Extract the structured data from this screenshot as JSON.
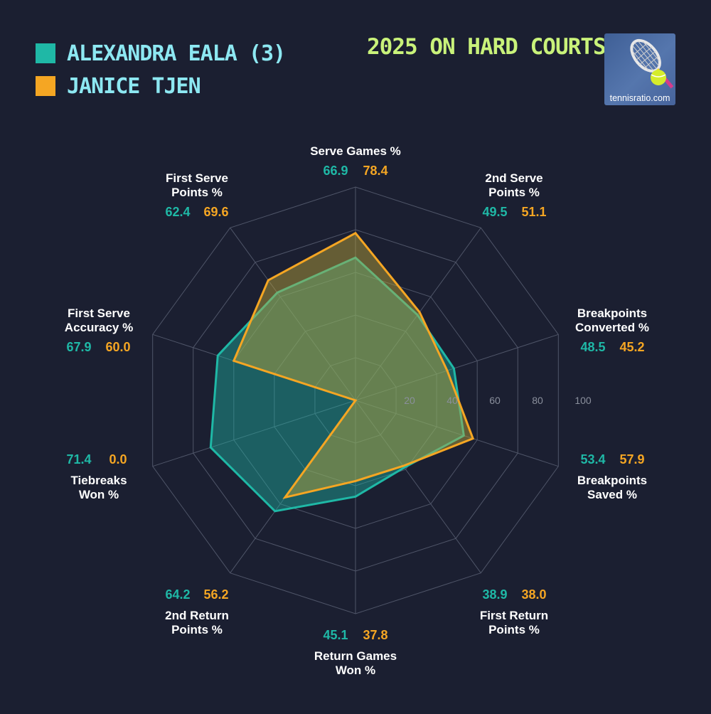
{
  "title": "2025 ON HARD COURTS",
  "logo": {
    "text": "tennisratio.com",
    "icon": "tennis-racket-and-ball-icon"
  },
  "legend": [
    {
      "label": "ALEXANDRA EALA (3)",
      "color": "#1fb8a6"
    },
    {
      "label": "JANICE TJEN",
      "color": "#f5a623"
    }
  ],
  "chart_data": {
    "type": "radar",
    "axes": [
      {
        "name": [
          "Serve Games %"
        ]
      },
      {
        "name": [
          "2nd Serve",
          "Points %"
        ]
      },
      {
        "name": [
          "Breakpoints",
          "Converted %"
        ]
      },
      {
        "name": [
          "Breakpoints",
          "Saved %"
        ]
      },
      {
        "name": [
          "First Return",
          "Points %"
        ]
      },
      {
        "name": [
          "Return Games",
          "Won %"
        ]
      },
      {
        "name": [
          "2nd Return",
          "Points %"
        ]
      },
      {
        "name": [
          "Tiebreaks",
          "Won %"
        ]
      },
      {
        "name": [
          "First Serve",
          "Accuracy %"
        ]
      },
      {
        "name": [
          "First Serve",
          "Points %"
        ]
      }
    ],
    "series": [
      {
        "name": "ALEXANDRA EALA (3)",
        "color": "#1fb8a6",
        "values": [
          66.9,
          49.5,
          48.5,
          53.4,
          38.9,
          45.1,
          64.2,
          71.4,
          67.9,
          62.4
        ]
      },
      {
        "name": "JANICE TJEN",
        "color": "#f5a623",
        "values": [
          78.4,
          51.1,
          45.2,
          57.9,
          38.0,
          37.8,
          56.2,
          0.0,
          60.0,
          69.6
        ]
      }
    ],
    "value_labels": [
      [
        "66.9",
        "78.4"
      ],
      [
        "49.5",
        "51.1"
      ],
      [
        "48.5",
        "45.2"
      ],
      [
        "53.4",
        "57.9"
      ],
      [
        "38.9",
        "38.0"
      ],
      [
        "45.1",
        "37.8"
      ],
      [
        "64.2",
        "56.2"
      ],
      [
        "71.4",
        "0.0"
      ],
      [
        "67.9",
        "60.0"
      ],
      [
        "62.4",
        "69.6"
      ]
    ],
    "rlim": [
      0,
      100
    ],
    "ticks": [
      20,
      40,
      60,
      80,
      100
    ],
    "tick_labels": [
      "20",
      "40",
      "60",
      "80",
      "100"
    ],
    "grid": true
  }
}
